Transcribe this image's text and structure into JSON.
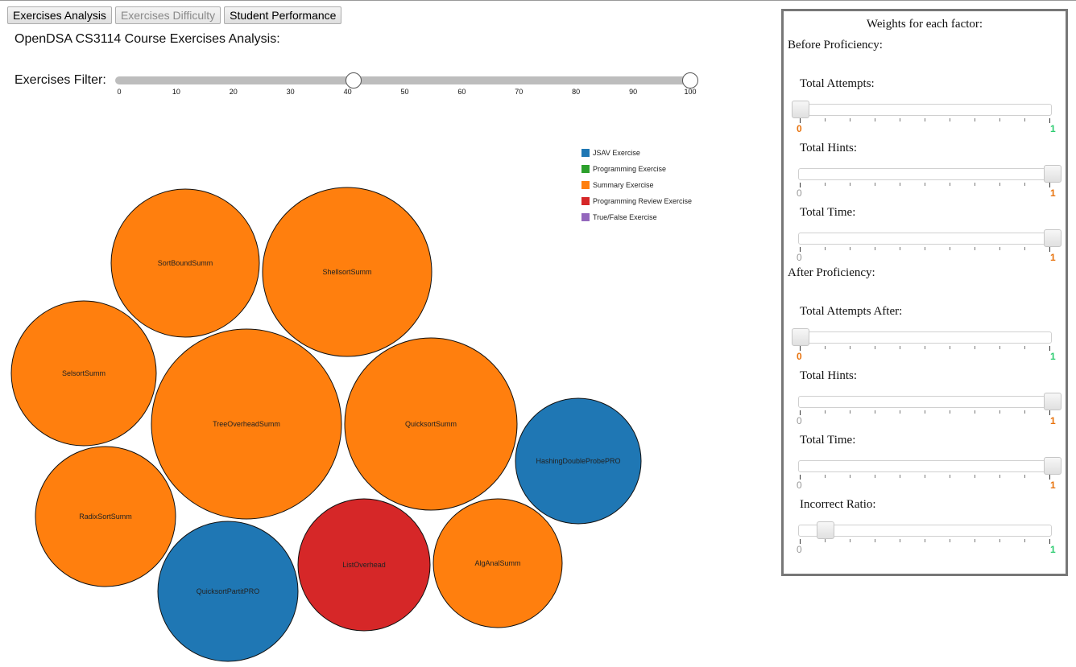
{
  "tabs": [
    {
      "label": "Exercises Analysis",
      "disabled": false
    },
    {
      "label": "Exercises Difficulty",
      "disabled": true
    },
    {
      "label": "Student Performance",
      "disabled": false
    }
  ],
  "title": "OpenDSA CS3114 Course Exercises Analysis:",
  "filter": {
    "label": "Exercises Filter:",
    "ticks": [
      "0",
      "10",
      "20",
      "30",
      "40",
      "50",
      "60",
      "70",
      "80",
      "90",
      "100"
    ],
    "range": [
      41,
      100
    ]
  },
  "legend": [
    {
      "label": "JSAV Exercise",
      "color": "#1f77b4"
    },
    {
      "label": "Programming Exercise",
      "color": "#2ca02c"
    },
    {
      "label": "Summary Exercise",
      "color": "#ff7f0e"
    },
    {
      "label": "Programming Review Exercise",
      "color": "#d62728"
    },
    {
      "label": "True/False Exercise",
      "color": "#9467bd"
    }
  ],
  "exercises": [
    {
      "name": "SortBoundSumm",
      "type": "Summary Exercise"
    },
    {
      "name": "ShellsortSumm",
      "type": "Summary Exercise"
    },
    {
      "name": "SelsortSumm",
      "type": "Summary Exercise"
    },
    {
      "name": "TreeOverheadSumm",
      "type": "Summary Exercise"
    },
    {
      "name": "QuicksortSumm",
      "type": "Summary Exercise"
    },
    {
      "name": "HashingDoubleProbePRO",
      "type": "JSAV Exercise"
    },
    {
      "name": "RadixSortSumm",
      "type": "Summary Exercise"
    },
    {
      "name": "QuicksortPartitPRO",
      "type": "JSAV Exercise"
    },
    {
      "name": "ListOverhead",
      "type": "Programming Review Exercise"
    },
    {
      "name": "AlgAnalSumm",
      "type": "Summary Exercise"
    }
  ],
  "weights": {
    "title": "Weights for each factor:",
    "before_label": "Before Proficiency:",
    "after_label": "After Proficiency:",
    "before": [
      {
        "label": "Total Attempts:",
        "value": 0,
        "min_label": "0",
        "max_label": "1",
        "highlight": "min"
      },
      {
        "label": "Total Hints:",
        "value": 1,
        "min_label": "0",
        "max_label": "1",
        "highlight": "max"
      },
      {
        "label": "Total Time:",
        "value": 1,
        "min_label": "0",
        "max_label": "1",
        "highlight": "max"
      }
    ],
    "after": [
      {
        "label": "Total Attempts After:",
        "value": 0,
        "min_label": "0",
        "max_label": "1",
        "highlight": "min"
      },
      {
        "label": "Total Hints:",
        "value": 1,
        "min_label": "0",
        "max_label": "1",
        "highlight": "max"
      },
      {
        "label": "Total Time:",
        "value": 1,
        "min_label": "0",
        "max_label": "1",
        "highlight": "max"
      },
      {
        "label": "Incorrect Ratio:",
        "value": 0.1,
        "min_label": "0",
        "max_label": "1",
        "highlight": "none"
      }
    ]
  },
  "colors": {
    "orange": "#e8730e",
    "green": "#2ecc71",
    "gray": "#999999"
  }
}
